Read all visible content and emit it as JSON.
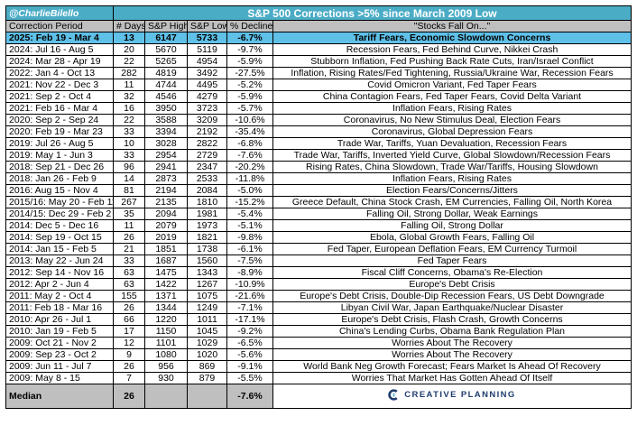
{
  "title": {
    "handle": "@CharlieBilello",
    "text": "S&P 500 Corrections >5% since March 2009 Low"
  },
  "headers": {
    "period": "Correction Period",
    "days": "# Days",
    "high": "S&P High",
    "low": "S&P Low",
    "decline": "% Decline",
    "reason": "\"Stocks Fall On...\""
  },
  "rows": [
    {
      "period": "2025: Feb 19 - Mar 4",
      "days": "13",
      "high": "6147",
      "low": "5733",
      "decline": "-6.7%",
      "reason": "Tariff Fears, Economic Slowdown Concerns",
      "highlight": true
    },
    {
      "period": "2024: Jul 16 - Aug 5",
      "days": "20",
      "high": "5670",
      "low": "5119",
      "decline": "-9.7%",
      "reason": "Recession Fears, Fed Behind Curve, Nikkei Crash"
    },
    {
      "period": "2024: Mar 28 - Apr 19",
      "days": "22",
      "high": "5265",
      "low": "4954",
      "decline": "-5.9%",
      "reason": "Stubborn Inflation, Fed Pushing Back Rate Cuts, Iran/Israel Conflict"
    },
    {
      "period": "2022: Jan 4 - Oct 13",
      "days": "282",
      "high": "4819",
      "low": "3492",
      "decline": "-27.5%",
      "reason": "Inflation, Rising Rates/Fed Tightening, Russia/Ukraine War, Recession Fears"
    },
    {
      "period": "2021: Nov 22 - Dec 3",
      "days": "11",
      "high": "4744",
      "low": "4495",
      "decline": "-5.2%",
      "reason": "Covid Omicron Variant, Fed Taper Fears"
    },
    {
      "period": "2021: Sep 2 - Oct 4",
      "days": "32",
      "high": "4546",
      "low": "4279",
      "decline": "-5.9%",
      "reason": "China Contagion Fears, Fed Taper Fears, Covid Delta Variant"
    },
    {
      "period": "2021: Feb 16 - Mar 4",
      "days": "16",
      "high": "3950",
      "low": "3723",
      "decline": "-5.7%",
      "reason": "Inflation Fears, Rising Rates"
    },
    {
      "period": "2020: Sep 2 - Sep 24",
      "days": "22",
      "high": "3588",
      "low": "3209",
      "decline": "-10.6%",
      "reason": "Coronavirus, No New Stimulus Deal, Election Fears"
    },
    {
      "period": "2020: Feb 19 - Mar 23",
      "days": "33",
      "high": "3394",
      "low": "2192",
      "decline": "-35.4%",
      "reason": "Coronavirus, Global Depression Fears"
    },
    {
      "period": "2019: Jul 26 - Aug 5",
      "days": "10",
      "high": "3028",
      "low": "2822",
      "decline": "-6.8%",
      "reason": "Trade War, Tariffs, Yuan Devaluation, Recession Fears"
    },
    {
      "period": "2019: May 1 - Jun 3",
      "days": "33",
      "high": "2954",
      "low": "2729",
      "decline": "-7.6%",
      "reason": "Trade War, Tariffs, Inverted Yield Curve, Global Slowdown/Recession Fears"
    },
    {
      "period": "2018: Sep 21 - Dec 26",
      "days": "96",
      "high": "2941",
      "low": "2347",
      "decline": "-20.2%",
      "reason": "Rising Rates, China Slowdown, Trade War/Tariffs, Housing Slowdown"
    },
    {
      "period": "2018: Jan 26 - Feb 9",
      "days": "14",
      "high": "2873",
      "low": "2533",
      "decline": "-11.8%",
      "reason": "Inflation Fears, Rising Rates"
    },
    {
      "period": "2016: Aug 15 - Nov 4",
      "days": "81",
      "high": "2194",
      "low": "2084",
      "decline": "-5.0%",
      "reason": "Election Fears/Concerns/Jitters"
    },
    {
      "period": "2015/16: May 20 - Feb 11",
      "days": "267",
      "high": "2135",
      "low": "1810",
      "decline": "-15.2%",
      "reason": "Greece Default, China Stock Crash, EM Currencies, Falling Oil, North Korea"
    },
    {
      "period": "2014/15: Dec 29 - Feb 2",
      "days": "35",
      "high": "2094",
      "low": "1981",
      "decline": "-5.4%",
      "reason": "Falling Oil, Strong Dollar, Weak Earnings"
    },
    {
      "period": "2014: Dec 5 - Dec 16",
      "days": "11",
      "high": "2079",
      "low": "1973",
      "decline": "-5.1%",
      "reason": "Falling Oil, Strong Dollar"
    },
    {
      "period": "2014: Sep 19 - Oct 15",
      "days": "26",
      "high": "2019",
      "low": "1821",
      "decline": "-9.8%",
      "reason": "Ebola, Global Growth Fears, Falling Oil"
    },
    {
      "period": "2014: Jan 15 - Feb 5",
      "days": "21",
      "high": "1851",
      "low": "1738",
      "decline": "-6.1%",
      "reason": "Fed Taper, European Deflation Fears, EM Currency Turmoil"
    },
    {
      "period": "2013: May 22 - Jun 24",
      "days": "33",
      "high": "1687",
      "low": "1560",
      "decline": "-7.5%",
      "reason": "Fed Taper Fears"
    },
    {
      "period": "2012: Sep 14 - Nov 16",
      "days": "63",
      "high": "1475",
      "low": "1343",
      "decline": "-8.9%",
      "reason": "Fiscal Cliff Concerns, Obama's Re-Election"
    },
    {
      "period": "2012: Apr 2 - Jun 4",
      "days": "63",
      "high": "1422",
      "low": "1267",
      "decline": "-10.9%",
      "reason": "Europe's Debt Crisis"
    },
    {
      "period": "2011: May 2 - Oct 4",
      "days": "155",
      "high": "1371",
      "low": "1075",
      "decline": "-21.6%",
      "reason": "Europe's Debt Crisis, Double-Dip Recession Fears, US Debt Downgrade"
    },
    {
      "period": "2011: Feb 18 - Mar 16",
      "days": "26",
      "high": "1344",
      "low": "1249",
      "decline": "-7.1%",
      "reason": "Libyan Civil War, Japan Earthquake/Nuclear Disaster"
    },
    {
      "period": "2010: Apr 26 - Jul 1",
      "days": "66",
      "high": "1220",
      "low": "1011",
      "decline": "-17.1%",
      "reason": "Europe's Debt Crisis, Flash Crash, Growth Concerns"
    },
    {
      "period": "2010: Jan 19 - Feb 5",
      "days": "17",
      "high": "1150",
      "low": "1045",
      "decline": "-9.2%",
      "reason": "China's Lending Curbs, Obama Bank Regulation Plan"
    },
    {
      "period": "2009: Oct 21 - Nov 2",
      "days": "12",
      "high": "1101",
      "low": "1029",
      "decline": "-6.5%",
      "reason": "Worries About The Recovery"
    },
    {
      "period": "2009: Sep 23 - Oct 2",
      "days": "9",
      "high": "1080",
      "low": "1020",
      "decline": "-5.6%",
      "reason": "Worries About The Recovery"
    },
    {
      "period": "2009: Jun 11 - Jul 7",
      "days": "26",
      "high": "956",
      "low": "869",
      "decline": "-9.1%",
      "reason": "World Bank Neg Growth Forecast; Fears Market Is Ahead Of Recovery"
    },
    {
      "period": "2009: May 8 - 15",
      "days": "7",
      "high": "930",
      "low": "879",
      "decline": "-5.5%",
      "reason": "Worries That Market Has Gotten Ahead Of Itself"
    }
  ],
  "median": {
    "label": "Median",
    "days": "26",
    "decline": "-7.6%"
  },
  "logo": {
    "text": "CREATIVE PLANNING",
    "icon": "creative-planning-logo-icon",
    "color": "#1f3d6e"
  },
  "colors": {
    "title_bg": "#4bacc6",
    "header_bg": "#bfbfbf",
    "highlight_bg": "#5fc0e8"
  }
}
